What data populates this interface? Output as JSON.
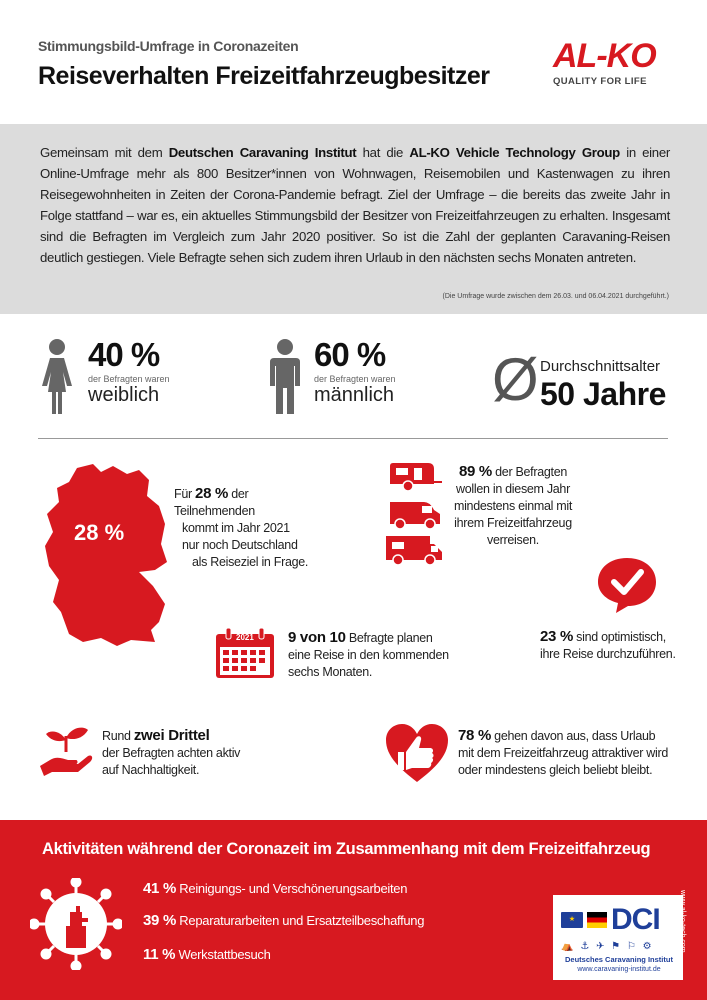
{
  "header": {
    "kicker": "Stimmungsbild-Umfrage in Coronazeiten",
    "title": "Reiseverhalten Freizeitfahrzeugbesitzer",
    "logo_word": "AL-KO",
    "logo_tagline": "QUALITY FOR LIFE"
  },
  "intro": {
    "p1": "Gemeinsam mit dem ",
    "b1": "Deutschen Caravaning Institut",
    "p2": " hat die ",
    "b2": "AL-KO Vehicle Technology Group",
    "p3": " in einer Online-Umfrage mehr als 800 Besitzer*innen von Wohnwagen, Reisemobilen und Kastenwagen zu ihren Reisegewohnheiten in Zeiten der Corona-Pandemie befragt. Ziel der Umfrage – die bereits das zweite Jahr in Folge stattfand – war es, ein aktuelles Stimmungsbild der Besitzer von Freizeitfahrzeugen zu erhalten. Insgesamt sind die Befragten im Vergleich zum Jahr 2020 positiver. So ist die Zahl der geplanten Caravaning-Reisen deutlich gestiegen. Viele Befragte sehen sich zudem ihren Urlaub in den nächsten sechs Monaten antreten.",
    "note": "(Die Umfrage wurde zwischen dem 26.03. und 06.04.2021 durchgeführt.)"
  },
  "demographics": {
    "female_pct": "40 %",
    "female_sub": "der Befragten waren",
    "female_word": "weiblich",
    "male_pct": "60 %",
    "male_sub": "der Befragten waren",
    "male_word": "männlich",
    "avg_symbol": "Ø",
    "avg_label": "Durchschnittsalter",
    "avg_value": "50 Jahre"
  },
  "facts": {
    "germany_pct": "28 %",
    "germany_lead": "Für ",
    "germany_num": "28 %",
    "germany_tail": " der",
    "germany_l2": "Teilnehmenden",
    "germany_l3": "kommt im Jahr 2021",
    "germany_l4": "nur noch Deutschland",
    "germany_l5": "als Reiseziel in Frage.",
    "travel_num": "89 %",
    "travel_l1": " der Befragten",
    "travel_l2": "wollen in diesem Jahr",
    "travel_l3": "mindestens einmal mit",
    "travel_l4": "ihrem Freizeitfahrzeug",
    "travel_l5": "verreisen.",
    "calendar_year": "2021",
    "plan_num": "9 von 10",
    "plan_l1": " Befragte planen",
    "plan_l2": "eine Reise in den kommenden",
    "plan_l3": "sechs Monaten.",
    "optim_num": "23 %",
    "optim_l1": " sind optimistisch,",
    "optim_l2": "ihre Reise durchzuführen.",
    "sust_lead": "Rund ",
    "sust_num": "zwei Drittel",
    "sust_l2": "der Befragten achten aktiv",
    "sust_l3": "auf Nachhaltigkeit.",
    "vac_num": "78 %",
    "vac_l1": " gehen davon aus, dass Urlaub",
    "vac_l2": "mit dem Freizeitfahrzeug attraktiver wird",
    "vac_l3": "oder mindestens gleich beliebt bleibt."
  },
  "footer": {
    "title": "Aktivitäten während der Coronazeit im Zusammenhang mit dem Freizeitfahrzeug",
    "activities": [
      {
        "pct": "41 %",
        "label": " Reinigungs- und Verschönerungsarbeiten"
      },
      {
        "pct": "39 %",
        "label": " Reparaturarbeiten und Ersatzteilbeschaffung"
      },
      {
        "pct": "11 %",
        "label": " Werkstattbesuch"
      }
    ],
    "dci_word": "DCI",
    "dci_name": "Deutsches Caravaning Institut",
    "dci_url": "www.caravaning-institut.de",
    "side_url": "www.al-ko-tech.com"
  },
  "colors": {
    "brand_red": "#d71920",
    "intro_bg": "#dcdcdc",
    "icon_gray": "#666666"
  }
}
